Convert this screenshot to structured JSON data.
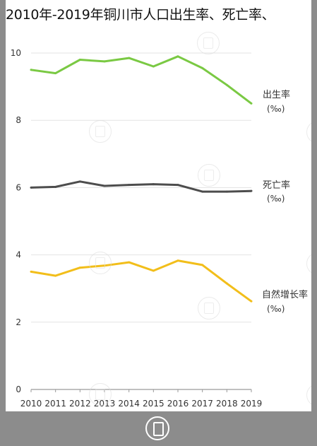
{
  "title": "2010年-2019年铜川市人口出生率、死亡率、",
  "chart_data": {
    "type": "line",
    "title": "2010年-2019年铜川市人口出生率、死亡率、",
    "categories": [
      "2010",
      "2011",
      "2012",
      "2013",
      "2014",
      "2015",
      "2016",
      "2017",
      "2018",
      "2019"
    ],
    "ylim": [
      0,
      10
    ],
    "yticks": [
      0,
      2,
      4,
      6,
      8,
      10
    ],
    "grid": true,
    "series": [
      {
        "name": "出生率",
        "unit": "(‰)",
        "color": "#7ac943",
        "values": [
          9.5,
          9.4,
          9.8,
          9.75,
          9.85,
          9.6,
          9.9,
          9.55,
          9.05,
          8.5
        ]
      },
      {
        "name": "死亡率",
        "unit": "(‰)",
        "color": "#4d4d4d",
        "values": [
          6.0,
          6.02,
          6.18,
          6.05,
          6.08,
          6.1,
          6.08,
          5.88,
          5.88,
          5.9
        ]
      },
      {
        "name": "自然增长率",
        "unit": "(‰)",
        "color": "#f2be1a",
        "values": [
          3.5,
          3.38,
          3.62,
          3.68,
          3.78,
          3.53,
          3.83,
          3.7,
          3.15,
          2.62
        ]
      }
    ]
  }
}
